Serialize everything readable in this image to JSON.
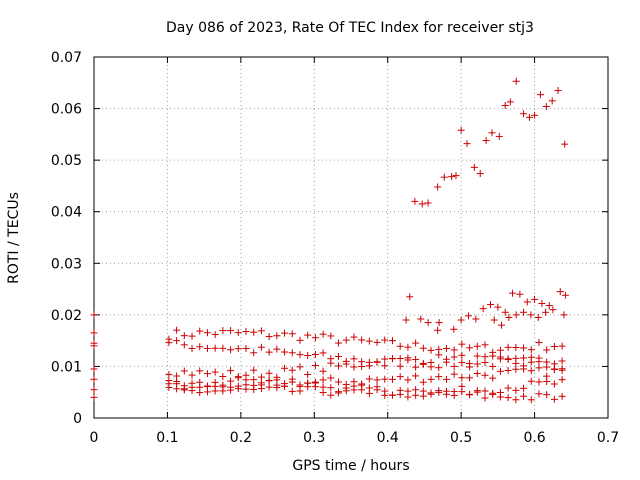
{
  "chart_data": {
    "type": "scatter",
    "title": "Day 086 of 2023, Rate Of TEC Index for receiver stj3",
    "xlabel": "GPS time / hours",
    "ylabel": "ROTI / TECUs",
    "xlim": [
      0,
      0.7
    ],
    "ylim": [
      0,
      0.07
    ],
    "xticks": [
      0,
      0.1,
      0.2,
      0.3,
      0.4,
      0.5,
      0.6,
      0.7
    ],
    "yticks": [
      0,
      0.01,
      0.02,
      0.03,
      0.04,
      0.05,
      0.06,
      0.07
    ],
    "xtick_labels": [
      "0",
      "0.1",
      "0.2",
      "0.3",
      "0.4",
      "0.5",
      "0.6",
      "0.7"
    ],
    "ytick_labels": [
      "0",
      "0.01",
      "0.02",
      "0.03",
      "0.04",
      "0.05",
      "0.06",
      "0.07"
    ],
    "grid": true,
    "marker": "+",
    "color": "#cc0000",
    "series": [
      {
        "name": "ROTI",
        "points": [
          [
            0.0,
            0.02
          ],
          [
            0.0,
            0.0165
          ],
          [
            0.0,
            0.0145
          ],
          [
            0.0,
            0.014
          ],
          [
            0.0,
            0.0095
          ],
          [
            0.0,
            0.0075
          ],
          [
            0.0,
            0.0055
          ],
          [
            0.0,
            0.004
          ],
          [
            0.437,
            0.042
          ],
          [
            0.447,
            0.0415
          ],
          [
            0.455,
            0.0417
          ],
          [
            0.468,
            0.0448
          ],
          [
            0.477,
            0.0467
          ],
          [
            0.487,
            0.0468
          ],
          [
            0.493,
            0.047
          ],
          [
            0.5,
            0.0558
          ],
          [
            0.508,
            0.0532
          ],
          [
            0.518,
            0.0486
          ],
          [
            0.526,
            0.0474
          ],
          [
            0.534,
            0.0538
          ],
          [
            0.542,
            0.0553
          ],
          [
            0.552,
            0.0546
          ],
          [
            0.56,
            0.0606
          ],
          [
            0.567,
            0.0613
          ],
          [
            0.575,
            0.0653
          ],
          [
            0.585,
            0.059
          ],
          [
            0.593,
            0.0583
          ],
          [
            0.6,
            0.0587
          ],
          [
            0.608,
            0.0627
          ],
          [
            0.616,
            0.0604
          ],
          [
            0.624,
            0.0615
          ],
          [
            0.632,
            0.0635
          ],
          [
            0.641,
            0.0531
          ],
          [
            0.43,
            0.0235
          ],
          [
            0.425,
            0.019
          ],
          [
            0.445,
            0.0192
          ],
          [
            0.455,
            0.0185
          ],
          [
            0.468,
            0.017
          ],
          [
            0.47,
            0.0185
          ],
          [
            0.49,
            0.0172
          ],
          [
            0.5,
            0.019
          ],
          [
            0.51,
            0.0198
          ],
          [
            0.52,
            0.0192
          ],
          [
            0.53,
            0.0212
          ],
          [
            0.54,
            0.022
          ],
          [
            0.55,
            0.0215
          ],
          [
            0.56,
            0.0205
          ],
          [
            0.57,
            0.0242
          ],
          [
            0.58,
            0.024
          ],
          [
            0.59,
            0.0225
          ],
          [
            0.6,
            0.023
          ],
          [
            0.61,
            0.0222
          ],
          [
            0.62,
            0.0218
          ],
          [
            0.635,
            0.0245
          ],
          [
            0.642,
            0.0238
          ],
          [
            0.545,
            0.019
          ],
          [
            0.555,
            0.018
          ],
          [
            0.565,
            0.0195
          ],
          [
            0.575,
            0.02
          ],
          [
            0.585,
            0.0205
          ],
          [
            0.595,
            0.02
          ],
          [
            0.605,
            0.0195
          ],
          [
            0.615,
            0.0205
          ],
          [
            0.625,
            0.021
          ],
          [
            0.64,
            0.02
          ]
        ]
      }
    ]
  }
}
